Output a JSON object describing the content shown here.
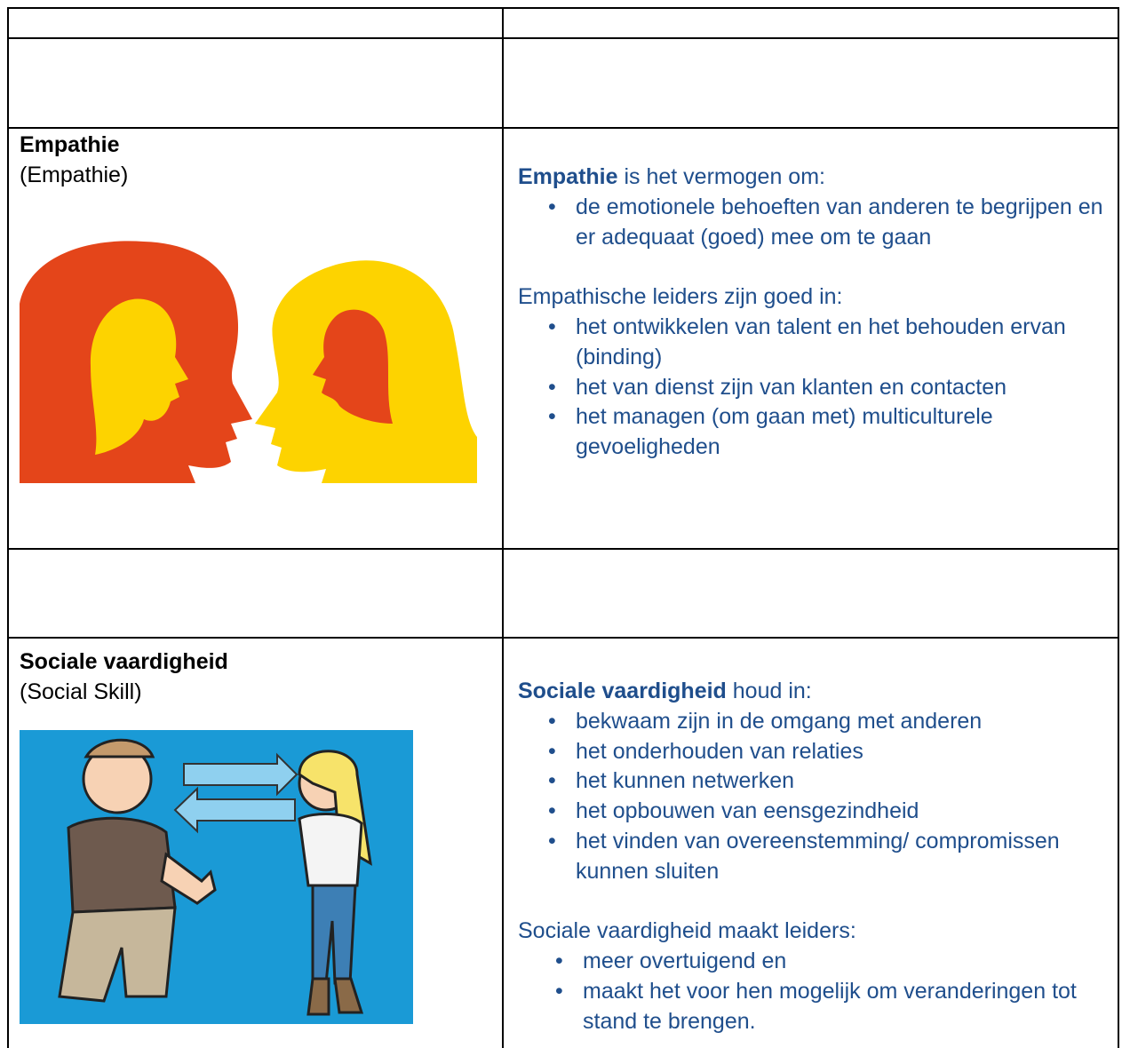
{
  "sections": [
    {
      "title": "Empathie",
      "subtitle": "(Empathie)",
      "lead_bold": "Empathie",
      "lead_rest": "is het vermogen om:",
      "bullets_1": [
        "de emotionele behoeften van anderen te begrijpen en er adequaat (goed) mee om te gaan"
      ],
      "paragraph_2": "Empathische leiders zijn goed in:",
      "bullets_2": [
        "het ontwikkelen van talent en het behouden ervan (binding)",
        "het van dienst zijn van klanten en contacten",
        "het managen (om gaan met) multiculturele gevoeligheden"
      ]
    },
    {
      "title": "Sociale vaardigheid",
      "subtitle": "(Social Skill)",
      "lead_bold": "Sociale vaardigheid",
      "lead_rest": "houd in:",
      "bullets_1": [
        "bekwaam zijn in de omgang met anderen",
        "het onderhouden van relaties",
        "het kunnen netwerken",
        "het opbouwen van eensgezindheid",
        "het vinden van overeenstemming/ compromissen kunnen sluiten"
      ],
      "paragraph_2": "Sociale vaardigheid maakt leiders:",
      "bullets_2": [
        "meer overtuigend en",
        "maakt het voor hen mogelijk om veranderingen tot stand te brengen."
      ]
    }
  ]
}
